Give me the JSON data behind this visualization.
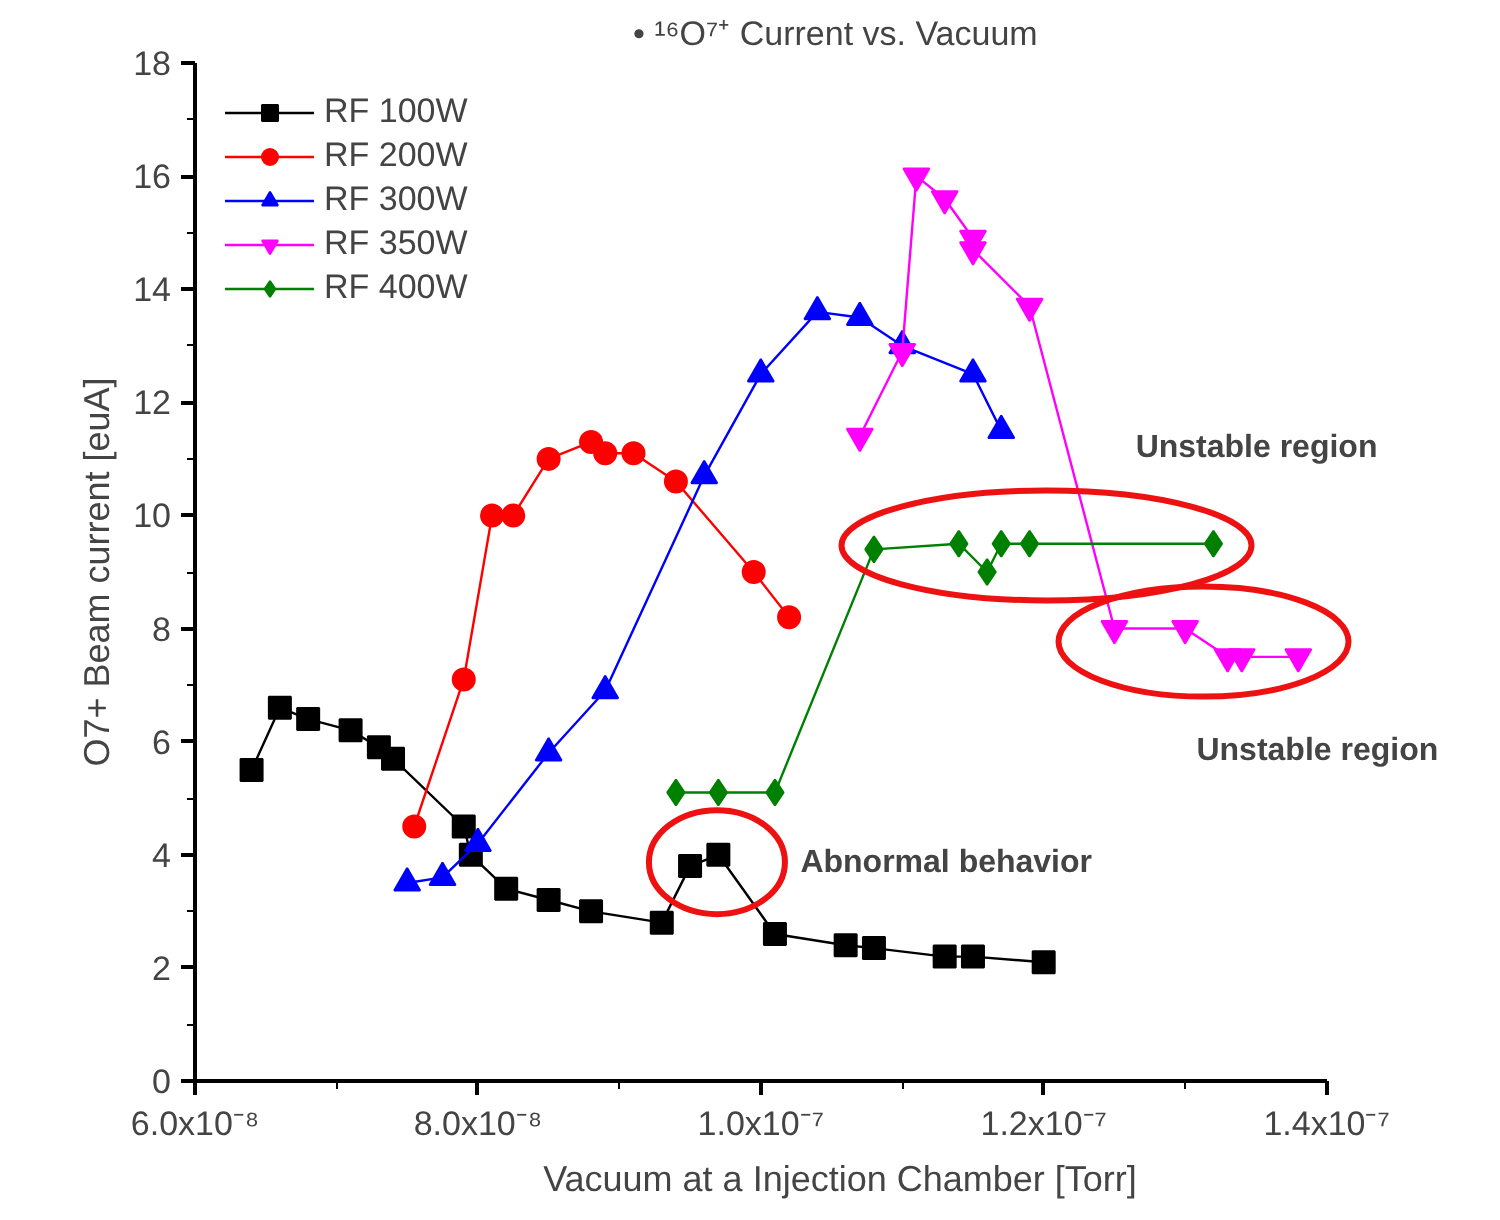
{
  "chart_data": {
    "type": "line",
    "title": "•  ¹⁶O⁷⁺ Current vs. Vacuum",
    "xlabel": "Vacuum at a Injection Chamber [Torr]",
    "ylabel": "O7+ Beam current [euA]",
    "xlim": [
      6e-08,
      1.4e-07
    ],
    "xticks": [
      {
        "value": 6e-08,
        "label": "6.0x10⁻⁸"
      },
      {
        "value": 7e-08,
        "label": null
      },
      {
        "value": 8e-08,
        "label": "8.0x10⁻⁸"
      },
      {
        "value": 9e-08,
        "label": null
      },
      {
        "value": 1e-07,
        "label": "1.0x10⁻⁷"
      },
      {
        "value": 1.1e-07,
        "label": null
      },
      {
        "value": 1.2e-07,
        "label": "1.2x10⁻⁷"
      },
      {
        "value": 1.3e-07,
        "label": null
      },
      {
        "value": 1.4e-07,
        "label": "1.4x10⁻⁷"
      }
    ],
    "ylim": [
      0,
      18
    ],
    "yticks": [
      0,
      {
        "value": 1,
        "label": null
      },
      2,
      {
        "value": 3,
        "label": null
      },
      4,
      {
        "value": 5,
        "label": null
      },
      6,
      {
        "value": 7,
        "label": null
      },
      8,
      {
        "value": 9,
        "label": null
      },
      10,
      {
        "value": 11,
        "label": null
      },
      12,
      {
        "value": 13,
        "label": null
      },
      14,
      {
        "value": 15,
        "label": null
      },
      16,
      {
        "value": 17,
        "label": null
      },
      18
    ],
    "grid": false,
    "legend": "top left",
    "line_style": "solid",
    "series": [
      {
        "name": "RF 100W",
        "color": "#000000",
        "marker": "square",
        "x": [
          6.4e-08,
          6.6e-08,
          6.8e-08,
          7.1e-08,
          7.3e-08,
          7.4e-08,
          7.9e-08,
          7.95e-08,
          8.2e-08,
          8.5e-08,
          8.8e-08,
          9.3e-08,
          9.5e-08,
          9.7e-08,
          1.01e-07,
          1.06e-07,
          1.08e-07,
          1.13e-07,
          1.15e-07,
          1.2e-07
        ],
        "values": [
          5.5,
          6.6,
          6.4,
          6.2,
          5.9,
          5.7,
          4.5,
          4.0,
          3.4,
          3.2,
          3.0,
          2.8,
          3.8,
          4.0,
          2.6,
          2.4,
          2.35,
          2.2,
          2.2,
          2.1
        ]
      },
      {
        "name": "RF 200W",
        "color": "#ff0000",
        "marker": "circle",
        "x": [
          7.55e-08,
          7.9e-08,
          8.1e-08,
          8.25e-08,
          8.5e-08,
          8.8e-08,
          8.9e-08,
          9.1e-08,
          9.4e-08,
          9.95e-08,
          1.02e-07
        ],
        "values": [
          4.5,
          7.1,
          10.0,
          10.0,
          11.0,
          11.3,
          11.1,
          11.1,
          10.6,
          9.0,
          8.2
        ]
      },
      {
        "name": "RF 300W",
        "color": "#0000ff",
        "marker": "triangle",
        "x": [
          7.5e-08,
          7.75e-08,
          8e-08,
          8.5e-08,
          8.9e-08,
          9.6e-08,
          1e-07,
          1.04e-07,
          1.07e-07,
          1.1e-07,
          1.15e-07,
          1.17e-07
        ],
        "values": [
          3.5,
          3.6,
          4.2,
          5.8,
          6.9,
          10.7,
          12.5,
          13.6,
          13.5,
          13.0,
          12.5,
          11.5
        ]
      },
      {
        "name": "RF 350W",
        "color": "#ff00ff",
        "marker": "triangle-down",
        "x": [
          1.07e-07,
          1.1e-07,
          1.11e-07,
          1.13e-07,
          1.15e-07,
          1.15e-07,
          1.19e-07,
          1.25e-07,
          1.3e-07,
          1.33e-07,
          1.34e-07,
          1.38e-07
        ],
        "values": [
          11.4,
          12.9,
          16.0,
          15.6,
          14.9,
          14.7,
          13.7,
          8.0,
          8.0,
          7.5,
          7.5,
          7.5
        ]
      },
      {
        "name": "RF 400W",
        "color": "#008000",
        "marker": "diamond",
        "x": [
          9.4e-08,
          9.7e-08,
          1.01e-07,
          1.08e-07,
          1.14e-07,
          1.16e-07,
          1.17e-07,
          1.19e-07,
          1.32e-07
        ],
        "values": [
          5.1,
          5.1,
          5.1,
          9.4,
          9.5,
          9.0,
          9.5,
          9.5,
          9.5
        ]
      }
    ],
    "annotations": [
      "Abnormal behavior",
      "Unstable region",
      "Unstable region"
    ]
  }
}
